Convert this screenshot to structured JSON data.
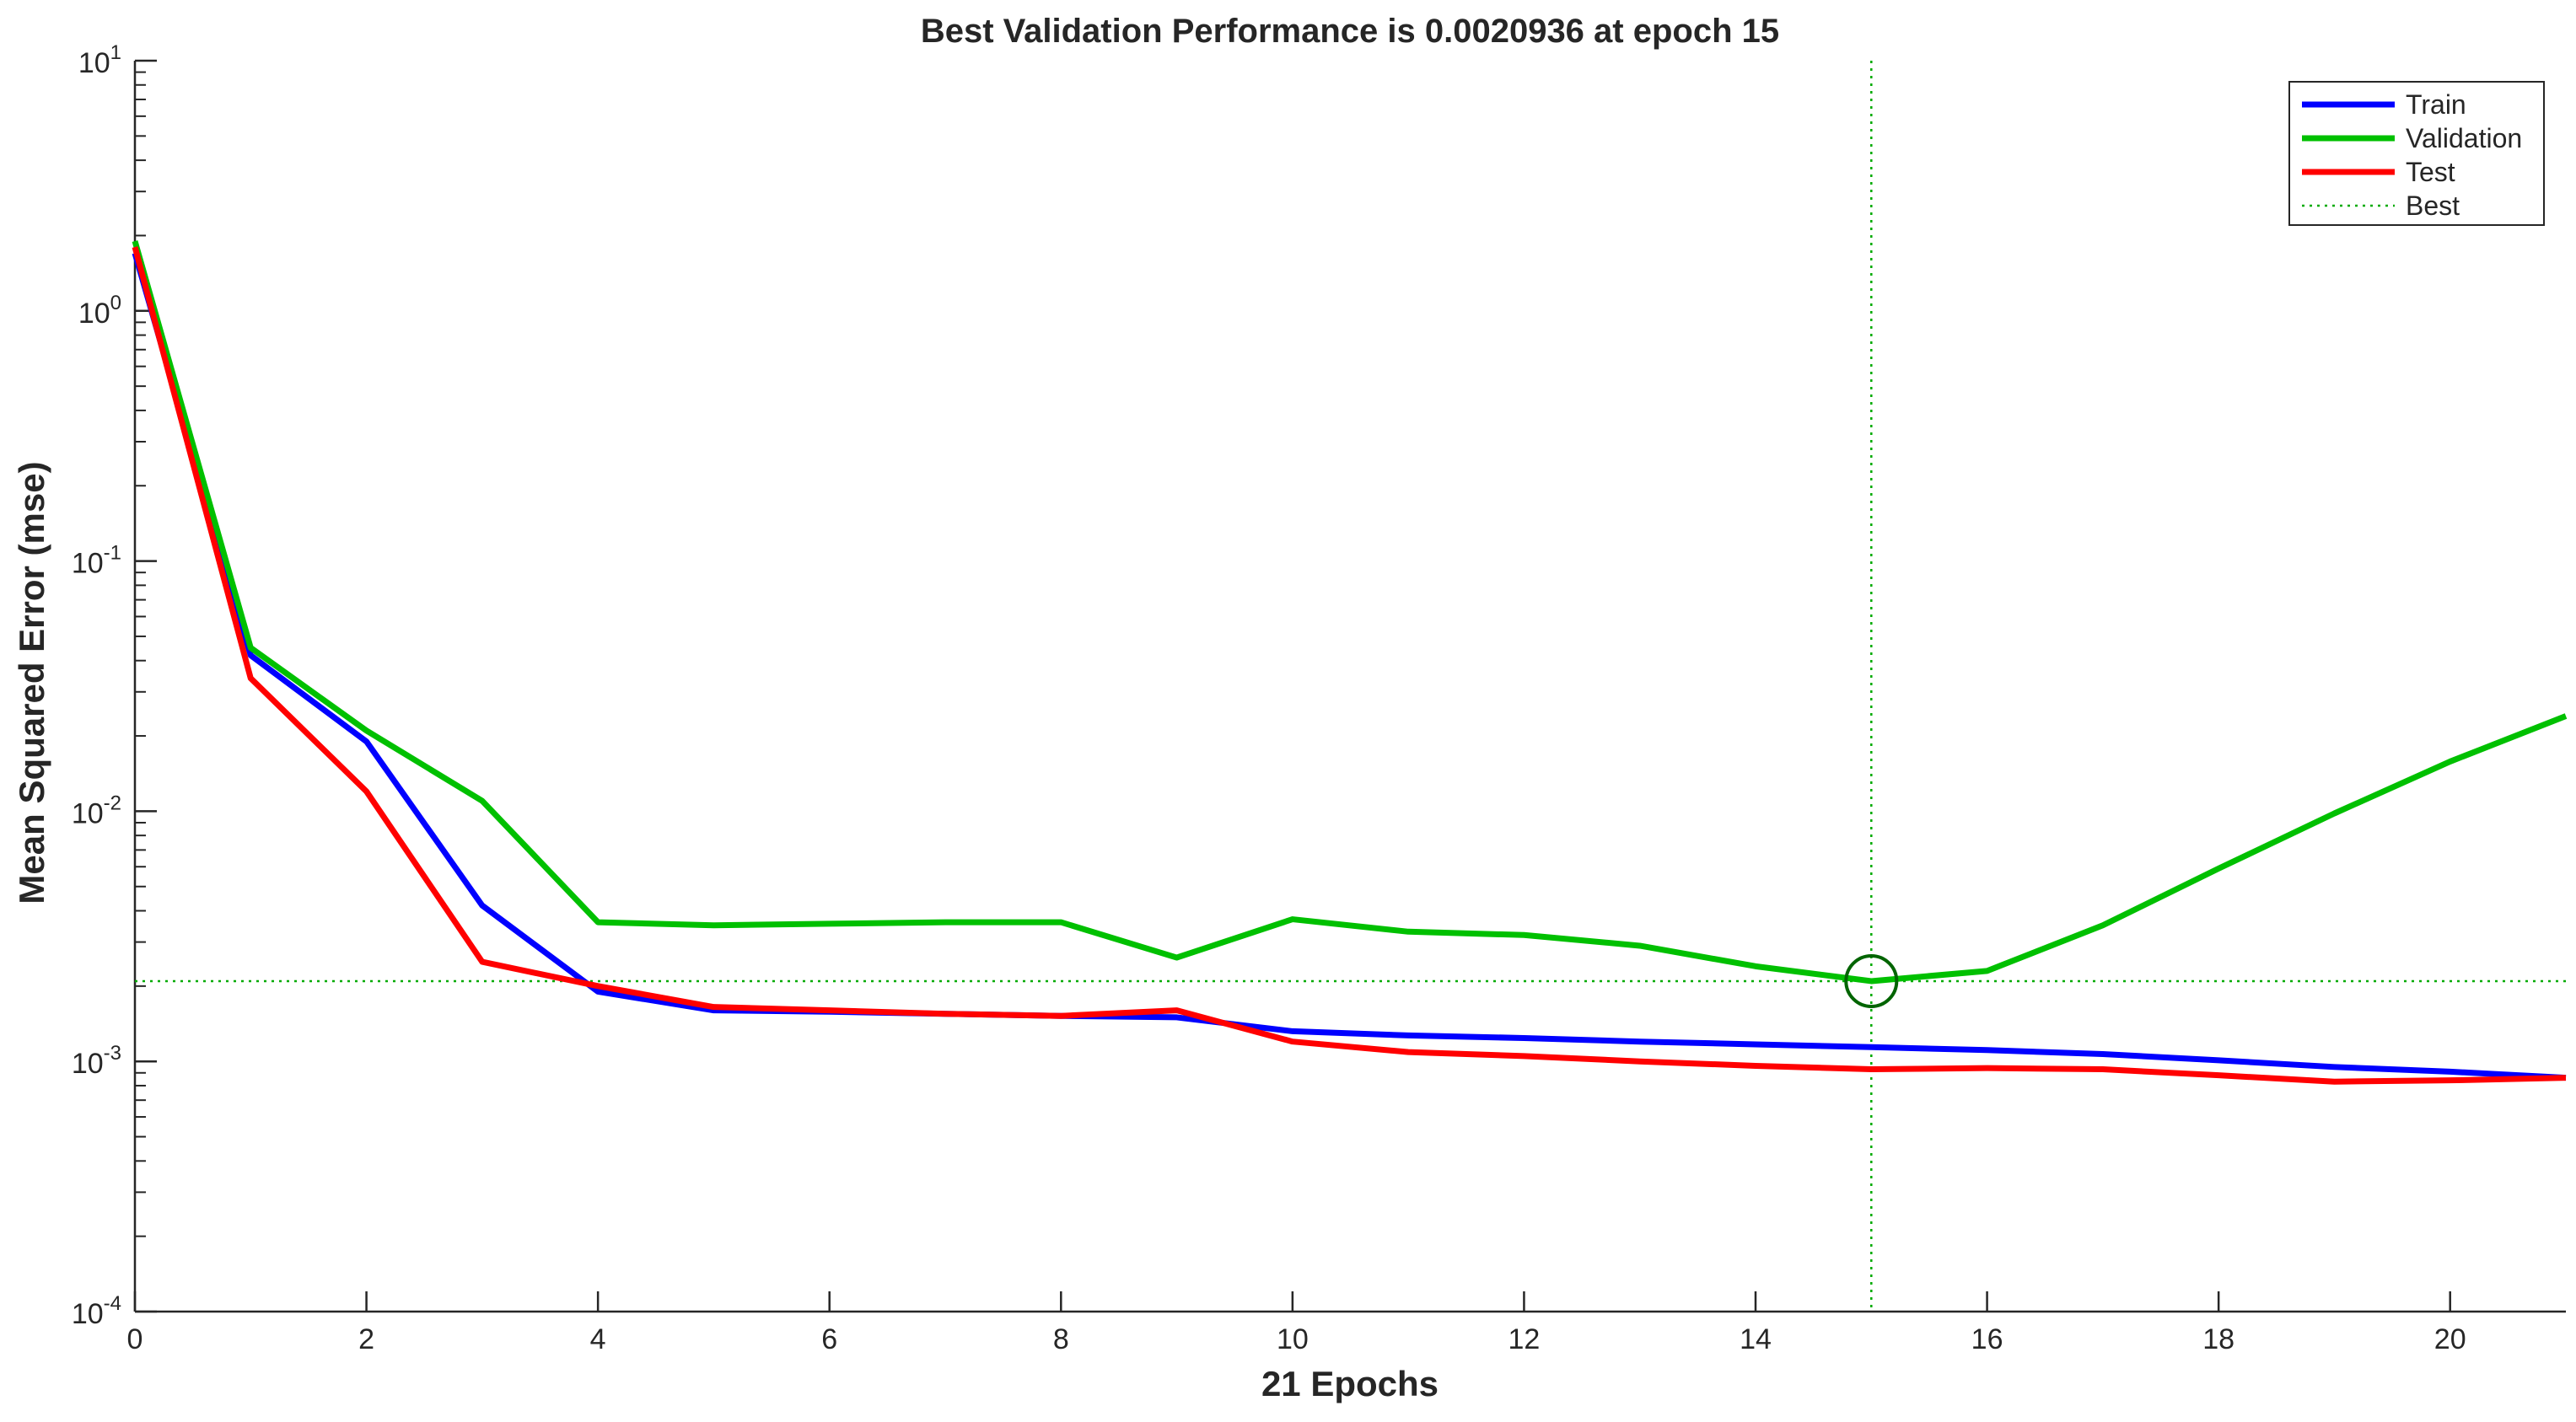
{
  "chart_data": {
    "type": "line",
    "title": "Best Validation Performance is 0.0020936 at epoch 15",
    "xlabel": "21 Epochs",
    "ylabel": "Mean Squared Error  (mse)",
    "xlim": [
      0,
      21
    ],
    "ylim": [
      0.0001,
      10
    ],
    "yscale": "log",
    "grid": false,
    "legend_position": "top-right",
    "xticks": [
      0,
      2,
      4,
      6,
      8,
      10,
      12,
      14,
      16,
      18,
      20
    ],
    "yticks": [
      {
        "base": "10",
        "exponent": "-4",
        "value": 0.0001
      },
      {
        "base": "10",
        "exponent": "-3",
        "value": 0.001
      },
      {
        "base": "10",
        "exponent": "-2",
        "value": 0.01
      },
      {
        "base": "10",
        "exponent": "-1",
        "value": 0.1
      },
      {
        "base": "10",
        "exponent": "0",
        "value": 1
      },
      {
        "base": "10",
        "exponent": "1",
        "value": 10
      }
    ],
    "x": [
      0,
      1,
      2,
      3,
      4,
      5,
      6,
      7,
      8,
      9,
      10,
      11,
      12,
      13,
      14,
      15,
      16,
      17,
      18,
      19,
      20,
      21
    ],
    "series": [
      {
        "name": "Train",
        "color": "#0000ff",
        "values": [
          1.7,
          0.042,
          0.019,
          0.0042,
          0.0019,
          0.0016,
          0.00158,
          0.00155,
          0.00152,
          0.0015,
          0.00132,
          0.00127,
          0.00124,
          0.0012,
          0.00117,
          0.00114,
          0.00111,
          0.00107,
          0.00101,
          0.00095,
          0.00091,
          0.00086
        ]
      },
      {
        "name": "Validation",
        "color": "#00c000",
        "values": [
          1.9,
          0.045,
          0.021,
          0.011,
          0.0036,
          0.0035,
          0.00355,
          0.0036,
          0.0036,
          0.0026,
          0.0037,
          0.0033,
          0.0032,
          0.0029,
          0.0024,
          0.0020936,
          0.0023,
          0.0035,
          0.0059,
          0.0098,
          0.0158,
          0.024
        ]
      },
      {
        "name": "Test",
        "color": "#ff0000",
        "values": [
          1.8,
          0.034,
          0.012,
          0.0025,
          0.002,
          0.00165,
          0.0016,
          0.00155,
          0.00152,
          0.0016,
          0.0012,
          0.00109,
          0.00105,
          0.001,
          0.00096,
          0.00093,
          0.00094,
          0.00093,
          0.00088,
          0.00083,
          0.00084,
          0.00086
        ]
      }
    ],
    "best": {
      "name": "Best",
      "epoch": 15,
      "value": 0.0020936,
      "color": "#00aa00",
      "marker_color": "#006400"
    }
  }
}
